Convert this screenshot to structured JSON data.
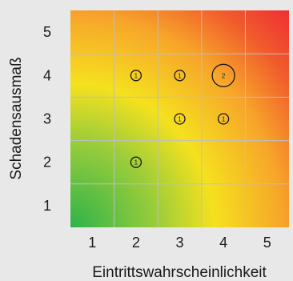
{
  "chart_data": {
    "type": "scatter",
    "title": "",
    "xlabel": "Eintrittswahrscheinlichkeit",
    "ylabel": "Schadensausmaß",
    "x_ticks": [
      "1",
      "2",
      "3",
      "4",
      "5"
    ],
    "y_ticks": [
      "1",
      "2",
      "3",
      "4",
      "5"
    ],
    "xlim": [
      0.5,
      5.5
    ],
    "ylim": [
      0.5,
      5.5
    ],
    "grid": true,
    "background": "risk heatmap gradient (green low risk, yellow medium, red high risk)",
    "colors": {
      "low": "#2db34a",
      "medium": "#f5e11e",
      "high": "#f0362f",
      "grid": "#bfbfbf",
      "page_background": "#e8e8e8"
    },
    "points": [
      {
        "x": 2,
        "y": 4,
        "count": 1
      },
      {
        "x": 3,
        "y": 4,
        "count": 1
      },
      {
        "x": 4,
        "y": 4,
        "count": 2
      },
      {
        "x": 3,
        "y": 3,
        "count": 1
      },
      {
        "x": 4,
        "y": 3,
        "count": 1
      },
      {
        "x": 2,
        "y": 2,
        "count": 1
      }
    ]
  }
}
